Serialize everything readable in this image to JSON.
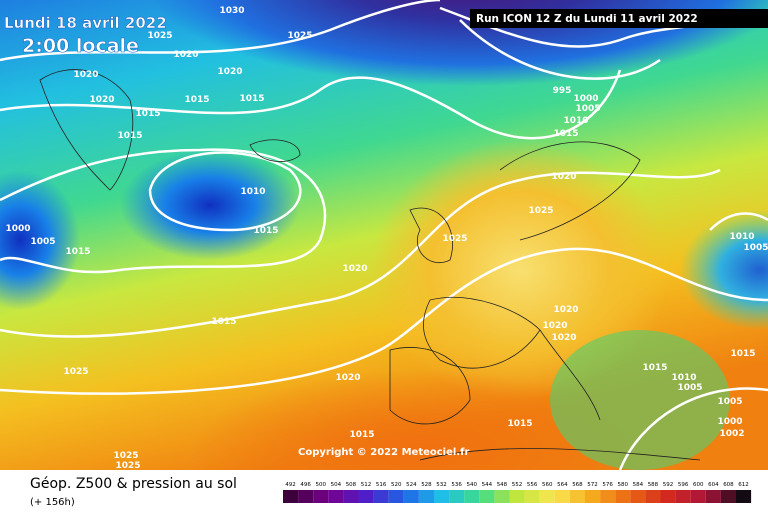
{
  "header": {
    "date": "Lundi 18 avril 2022",
    "time": "2:00 locale",
    "run": "Run ICON 12 Z du Lundi 11 avril 2022",
    "copyright": "Copyright © 2022 Meteociel.fr"
  },
  "isobar_labels": [
    "1025",
    "1020",
    "1030",
    "1025",
    "1020",
    "1020",
    "1020",
    "1015",
    "1015",
    "1015",
    "1015",
    "1010",
    "1015",
    "1000",
    "1005",
    "1015",
    "1020",
    "1015",
    "1025",
    "1020",
    "1015",
    "1025",
    "1025",
    "995",
    "1000",
    "1005",
    "1010",
    "1015",
    "1020",
    "1025",
    "1025",
    "1020",
    "1020",
    "1020",
    "1015",
    "1015",
    "1010",
    "1005",
    "1010",
    "1005",
    "1015",
    "1005",
    "1000",
    "1002"
  ],
  "footer": {
    "title": "Géop. Z500 & pression au sol",
    "lead": "(+ 156h)",
    "scale_ticks": [
      492,
      496,
      500,
      504,
      508,
      512,
      516,
      520,
      524,
      528,
      532,
      536,
      540,
      544,
      548,
      552,
      556,
      560,
      564,
      568,
      572,
      576,
      580,
      584,
      588,
      592,
      596,
      600,
      604,
      608,
      612
    ]
  }
}
